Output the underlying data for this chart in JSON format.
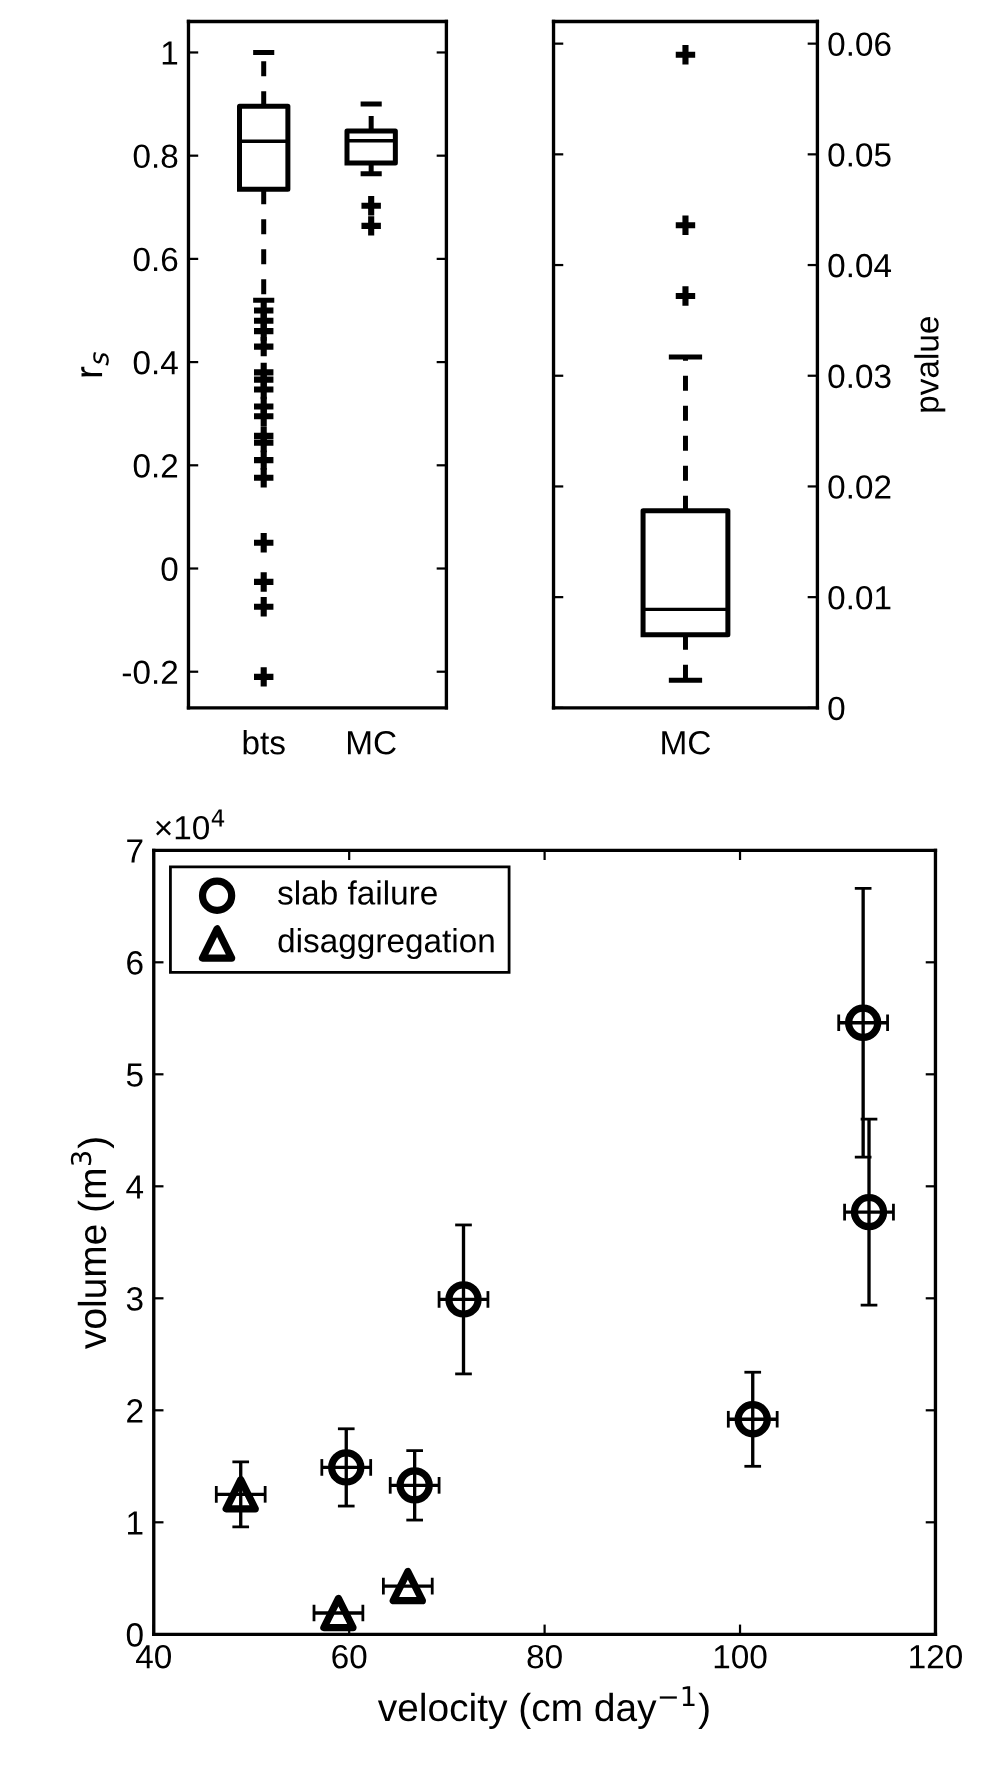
{
  "chart_data": [
    {
      "type": "box",
      "ylabel": "r$_{s}$",
      "categories": [
        "bts",
        "MC"
      ],
      "ylim": [
        -0.27,
        1.06
      ],
      "yticks": [
        -0.2,
        0,
        0.2,
        0.4,
        0.6,
        0.8,
        1
      ],
      "boxes": [
        {
          "low": 0.52,
          "q1": 0.735,
          "median": 0.828,
          "q3": 0.896,
          "high": 1.0,
          "outliers": [
            0.5,
            0.48,
            0.46,
            0.43,
            0.38,
            0.366,
            0.347,
            0.314,
            0.295,
            0.257,
            0.244,
            0.21,
            0.176,
            0.05,
            -0.026,
            -0.074,
            -0.21
          ]
        },
        {
          "low": 0.765,
          "q1": 0.786,
          "median": 0.829,
          "q3": 0.848,
          "high": 0.9,
          "outliers": [
            0.703,
            0.664
          ]
        }
      ],
      "color": "#000000",
      "grid": false
    },
    {
      "type": "box",
      "y2label": "pvalue",
      "categories": [
        "MC"
      ],
      "y2lim": [
        0,
        0.062
      ],
      "y2ticks": [
        0,
        0.01,
        0.02,
        0.03,
        0.04,
        0.05,
        0.06
      ],
      "series": [
        {
          "axis": "y2",
          "boxes": [
            {
              "low": 0.0025,
              "q1": 0.0066,
              "median": 0.0089,
              "q3": 0.0178,
              "high": 0.0317,
              "outliers": [
                0.059,
                0.0436,
                0.0372
              ]
            }
          ]
        }
      ],
      "color": "#000000",
      "grid": false
    },
    {
      "type": "scatter",
      "xlabel": "velocity (cm day$^{−1}$)",
      "ylabel": "volume (m$^{3}$)",
      "annotations": [
        "×10$^{4}$"
      ],
      "xlim": [
        40,
        120
      ],
      "xticks": [
        40,
        60,
        80,
        100,
        120
      ],
      "ylim": [
        0,
        7
      ],
      "yticks": [
        0,
        1,
        2,
        3,
        4,
        5,
        6,
        7
      ],
      "legend": "top left",
      "grid": false,
      "series": [
        {
          "name": "slab failure",
          "color": "#000000",
          "marker": "circle",
          "x": [
            59.7,
            66.7,
            71.7,
            101.3,
            112.6,
            113.2
          ],
          "values": [
            1.49,
            1.33,
            2.99,
            1.92,
            5.46,
            3.77
          ],
          "errors": [
            0.345,
            0.31,
            0.665,
            0.42,
            1.2,
            0.83
          ],
          "xerrors": [
            2.5,
            2.5,
            2.5,
            2.5,
            2.5,
            2.5
          ]
        },
        {
          "name": "disaggregation",
          "color": "#000000",
          "marker": "triangle",
          "x": [
            48.9,
            58.9,
            66.0
          ],
          "values": [
            1.25,
            0.19,
            0.43
          ],
          "errors": [
            0.29,
            null,
            null
          ],
          "xerrors": [
            2.5,
            2.5,
            2.5
          ]
        }
      ]
    }
  ]
}
